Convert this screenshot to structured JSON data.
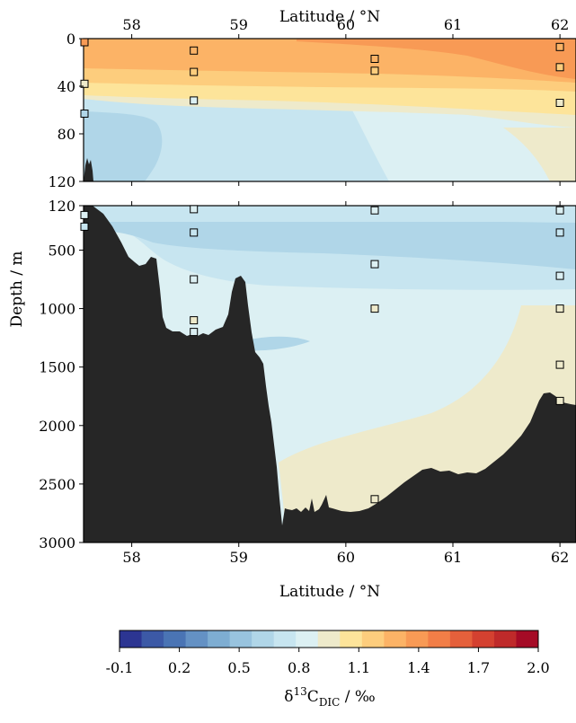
{
  "chart_data": {
    "type": "heatmap",
    "x_label_top": "Latitude / °N",
    "x_label_bottom": "Latitude / °N",
    "y_label": "Depth / m",
    "x_range": [
      57.55,
      62.15
    ],
    "x_ticks": [
      58,
      59,
      60,
      61,
      62
    ],
    "top_panel": {
      "y_range": [
        0,
        120
      ],
      "y_ticks": [
        0,
        40,
        80,
        120
      ],
      "samples": [
        {
          "lat": 57.55,
          "depth": 3,
          "value": 1.4
        },
        {
          "lat": 57.55,
          "depth": 38,
          "value": 1.0
        },
        {
          "lat": 57.55,
          "depth": 63,
          "value": 0.6
        },
        {
          "lat": 58.58,
          "depth": 10,
          "value": 1.3
        },
        {
          "lat": 58.58,
          "depth": 28,
          "value": 1.2
        },
        {
          "lat": 58.58,
          "depth": 52,
          "value": 0.8
        },
        {
          "lat": 60.27,
          "depth": 17,
          "value": 1.3
        },
        {
          "lat": 60.27,
          "depth": 27,
          "value": 1.2
        },
        {
          "lat": 62.0,
          "depth": 7,
          "value": 1.3
        },
        {
          "lat": 62.0,
          "depth": 24,
          "value": 1.2
        },
        {
          "lat": 62.0,
          "depth": 54,
          "value": 0.9
        }
      ]
    },
    "bottom_panel": {
      "y_range": [
        120,
        3000
      ],
      "y_ticks": [
        120,
        500,
        1000,
        1500,
        2000,
        2500,
        3000
      ],
      "samples": [
        {
          "lat": 57.55,
          "depth": 200,
          "value": 0.8
        },
        {
          "lat": 57.55,
          "depth": 300,
          "value": 0.7
        },
        {
          "lat": 58.58,
          "depth": 150,
          "value": 0.8
        },
        {
          "lat": 58.58,
          "depth": 350,
          "value": 0.7
        },
        {
          "lat": 58.58,
          "depth": 750,
          "value": 0.8
        },
        {
          "lat": 58.58,
          "depth": 1100,
          "value": 1.0
        },
        {
          "lat": 58.58,
          "depth": 1200,
          "value": 0.8
        },
        {
          "lat": 60.27,
          "depth": 160,
          "value": 0.8
        },
        {
          "lat": 60.27,
          "depth": 620,
          "value": 0.8
        },
        {
          "lat": 60.27,
          "depth": 1000,
          "value": 1.0
        },
        {
          "lat": 60.27,
          "depth": 2630,
          "value": 1.0
        },
        {
          "lat": 62.0,
          "depth": 160,
          "value": 0.8
        },
        {
          "lat": 62.0,
          "depth": 350,
          "value": 0.7
        },
        {
          "lat": 62.0,
          "depth": 720,
          "value": 0.8
        },
        {
          "lat": 62.0,
          "depth": 1000,
          "value": 0.9
        },
        {
          "lat": 62.0,
          "depth": 1480,
          "value": 0.9
        },
        {
          "lat": 62.0,
          "depth": 1790,
          "value": 1.0
        }
      ]
    },
    "colorbar": {
      "label_main": "δ",
      "label_sup": "13",
      "label_base": "C",
      "label_sub": "DIC",
      "label_unit": " / ‰",
      "range": [
        -0.1,
        2.0
      ],
      "ticks": [
        "-0.1",
        "0.2",
        "0.5",
        "0.8",
        "1.1",
        "1.4",
        "1.7",
        "2.0"
      ],
      "colors": [
        "#2c3592",
        "#3c59a6",
        "#4a74b4",
        "#6491c4",
        "#7eadd2",
        "#98c3de",
        "#b0d6e8",
        "#c7e5f0",
        "#dcf0f3",
        "#eeeacb",
        "#fde49a",
        "#fdcd7d",
        "#fcb366",
        "#f89a55",
        "#f27e47",
        "#e5603b",
        "#d44130",
        "#bf2a2a",
        "#a50b26"
      ]
    },
    "region_colors": {
      "seafloor": "#262626"
    }
  }
}
